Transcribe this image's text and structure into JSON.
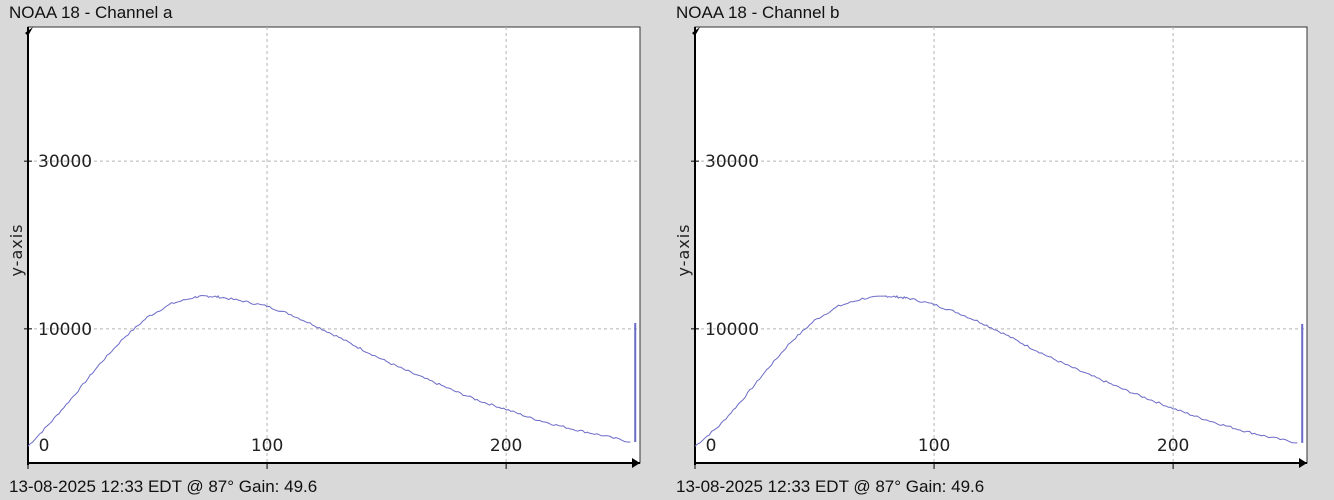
{
  "chart_data": [
    {
      "type": "line",
      "title": "NOAA 18 - Channel a",
      "footer": "13-08-2025 12:33 EDT @ 87° Gain: 49.6",
      "xlabel": "",
      "ylabel": "y-axis",
      "xlim": [
        0,
        256
      ],
      "ylim": [
        -6000,
        46000
      ],
      "x_ticks": [
        0,
        100,
        200
      ],
      "y_ticks": [
        10000,
        30000
      ],
      "grid": true,
      "line_color": "#6b6bc8",
      "curve": {
        "x": [
          0,
          10,
          20,
          30,
          40,
          50,
          60,
          70,
          75,
          80,
          90,
          100,
          110,
          120,
          130,
          140,
          150,
          160,
          170,
          180,
          190,
          200,
          210,
          220,
          230,
          240,
          252
        ],
        "y": [
          -4000,
          -1000,
          2300,
          5800,
          8900,
          11400,
          13000,
          13800,
          13900,
          13800,
          13300,
          12700,
          11700,
          10400,
          9000,
          7500,
          6100,
          4800,
          3600,
          2400,
          1300,
          400,
          -600,
          -1400,
          -2100,
          -2700,
          -3500
        ]
      },
      "spike": {
        "x": 254,
        "y_low": -3500,
        "y_high": 10700
      }
    },
    {
      "type": "line",
      "title": "NOAA 18 - Channel b",
      "footer": "13-08-2025 12:33 EDT @ 87° Gain: 49.6",
      "xlabel": "",
      "ylabel": "y-axis",
      "xlim": [
        0,
        256
      ],
      "ylim": [
        -6000,
        46000
      ],
      "x_ticks": [
        0,
        100,
        200
      ],
      "y_ticks": [
        10000,
        30000
      ],
      "grid": true,
      "line_color": "#6b6bc8",
      "curve": {
        "x": [
          0,
          10,
          20,
          30,
          40,
          50,
          60,
          70,
          80,
          85,
          90,
          100,
          110,
          120,
          130,
          140,
          150,
          160,
          170,
          180,
          190,
          200,
          210,
          220,
          230,
          240,
          252
        ],
        "y": [
          -4000,
          -1600,
          1600,
          5100,
          8400,
          11000,
          12700,
          13600,
          13900,
          13800,
          13600,
          12900,
          11900,
          10700,
          9300,
          7800,
          6400,
          5100,
          3900,
          2700,
          1600,
          500,
          -500,
          -1400,
          -2200,
          -2900,
          -3600
        ]
      },
      "spike": {
        "x": 254,
        "y_low": -3600,
        "y_high": 10600
      }
    }
  ]
}
